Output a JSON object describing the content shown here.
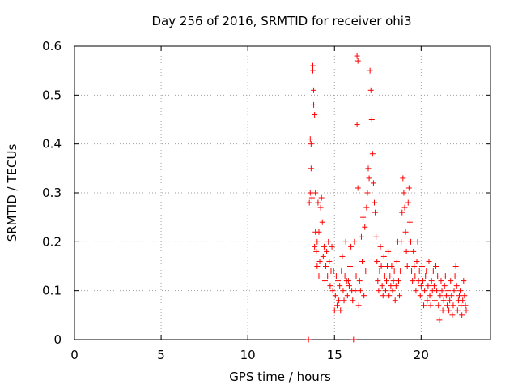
{
  "chart_data": {
    "type": "scatter",
    "title": "Day 256 of 2016, SRMTID for receiver ohi3",
    "xlabel": "GPS time / hours",
    "ylabel": "SRMTID / TECUs",
    "xlim": [
      0,
      24
    ],
    "ylim": [
      0,
      0.6
    ],
    "xticks": [
      0,
      5,
      10,
      15,
      20
    ],
    "yticks": [
      0,
      0.1,
      0.2,
      0.3,
      0.4,
      0.5,
      0.6
    ],
    "xtick_labels": [
      "0",
      "5",
      "10",
      "15",
      "20"
    ],
    "ytick_labels": [
      "0",
      "0.1",
      "0.2",
      "0.3",
      "0.4",
      "0.5",
      "0.6"
    ],
    "grid": true,
    "marker": "plus",
    "color": "#ff0000",
    "series": [
      {
        "name": "SRMTID",
        "x": [
          13.5,
          13.55,
          13.6,
          13.6,
          13.65,
          13.65,
          13.7,
          13.75,
          13.75,
          13.8,
          13.8,
          13.85,
          13.85,
          13.9,
          13.9,
          13.95,
          14.0,
          14.0,
          14.05,
          14.1,
          14.1,
          14.15,
          14.2,
          14.25,
          14.3,
          14.35,
          14.4,
          14.45,
          14.5,
          14.55,
          14.6,
          14.65,
          14.7,
          14.75,
          14.8,
          14.85,
          14.9,
          14.95,
          15.0,
          15.05,
          15.1,
          15.15,
          15.2,
          15.25,
          15.3,
          15.35,
          15.4,
          15.45,
          15.5,
          15.55,
          15.6,
          15.65,
          15.7,
          15.75,
          15.8,
          15.85,
          15.9,
          15.95,
          16.0,
          16.05,
          16.1,
          16.15,
          16.2,
          16.25,
          16.3,
          16.3,
          16.35,
          16.35,
          16.4,
          16.45,
          16.5,
          16.55,
          16.6,
          16.65,
          16.7,
          16.75,
          16.8,
          16.85,
          16.9,
          16.95,
          17.0,
          17.05,
          17.1,
          17.15,
          17.2,
          17.25,
          17.3,
          17.35,
          17.4,
          17.45,
          17.5,
          17.55,
          17.6,
          17.65,
          17.7,
          17.75,
          17.8,
          17.85,
          17.9,
          17.95,
          18.0,
          18.05,
          18.1,
          18.15,
          18.2,
          18.25,
          18.3,
          18.35,
          18.4,
          18.45,
          18.5,
          18.55,
          18.6,
          18.65,
          18.7,
          18.75,
          18.8,
          18.85,
          18.9,
          18.95,
          19.0,
          19.05,
          19.1,
          19.15,
          19.2,
          19.25,
          19.3,
          19.35,
          19.4,
          19.45,
          19.5,
          19.55,
          19.6,
          19.65,
          19.7,
          19.75,
          19.8,
          19.85,
          19.9,
          19.95,
          20.0,
          20.05,
          20.1,
          20.15,
          20.2,
          20.25,
          20.3,
          20.35,
          20.4,
          20.45,
          20.5,
          20.55,
          20.6,
          20.65,
          20.7,
          20.75,
          20.8,
          20.85,
          20.9,
          20.95,
          21.0,
          21.05,
          21.1,
          21.15,
          21.2,
          21.25,
          21.3,
          21.35,
          21.4,
          21.45,
          21.5,
          21.55,
          21.6,
          21.65,
          21.7,
          21.75,
          21.8,
          21.85,
          21.9,
          21.95,
          22.0,
          22.05,
          22.1,
          22.15,
          22.2,
          22.25,
          22.3,
          22.35,
          22.4,
          22.45,
          22.5,
          22.55,
          22.6
        ],
        "y": [
          0.0,
          0.28,
          0.3,
          0.41,
          0.35,
          0.4,
          0.29,
          0.56,
          0.55,
          0.51,
          0.48,
          0.46,
          0.19,
          0.3,
          0.22,
          0.18,
          0.2,
          0.15,
          0.28,
          0.22,
          0.13,
          0.16,
          0.27,
          0.29,
          0.24,
          0.17,
          0.19,
          0.12,
          0.15,
          0.18,
          0.13,
          0.2,
          0.16,
          0.11,
          0.14,
          0.19,
          0.1,
          0.14,
          0.06,
          0.09,
          0.13,
          0.07,
          0.12,
          0.08,
          0.11,
          0.06,
          0.14,
          0.17,
          0.1,
          0.08,
          0.13,
          0.2,
          0.12,
          0.09,
          0.12,
          0.11,
          0.15,
          0.19,
          0.1,
          0.08,
          0.0,
          0.2,
          0.1,
          0.13,
          0.44,
          0.58,
          0.57,
          0.31,
          0.07,
          0.12,
          0.1,
          0.21,
          0.16,
          0.25,
          0.09,
          0.23,
          0.14,
          0.27,
          0.3,
          0.35,
          0.33,
          0.55,
          0.51,
          0.45,
          0.38,
          0.32,
          0.28,
          0.26,
          0.21,
          0.16,
          0.12,
          0.1,
          0.14,
          0.19,
          0.15,
          0.11,
          0.09,
          0.17,
          0.13,
          0.1,
          0.12,
          0.15,
          0.18,
          0.09,
          0.13,
          0.11,
          0.15,
          0.1,
          0.12,
          0.14,
          0.08,
          0.11,
          0.16,
          0.2,
          0.12,
          0.09,
          0.14,
          0.2,
          0.26,
          0.33,
          0.3,
          0.27,
          0.22,
          0.18,
          0.15,
          0.28,
          0.31,
          0.24,
          0.2,
          0.14,
          0.12,
          0.18,
          0.15,
          0.13,
          0.1,
          0.16,
          0.2,
          0.12,
          0.14,
          0.09,
          0.11,
          0.15,
          0.12,
          0.07,
          0.1,
          0.13,
          0.14,
          0.08,
          0.11,
          0.16,
          0.09,
          0.07,
          0.12,
          0.1,
          0.14,
          0.11,
          0.08,
          0.15,
          0.1,
          0.13,
          0.07,
          0.04,
          0.09,
          0.12,
          0.1,
          0.06,
          0.08,
          0.11,
          0.13,
          0.09,
          0.07,
          0.1,
          0.06,
          0.08,
          0.12,
          0.09,
          0.05,
          0.07,
          0.1,
          0.13,
          0.15,
          0.11,
          0.06,
          0.08,
          0.09,
          0.1,
          0.07,
          0.05,
          0.08,
          0.12,
          0.09,
          0.07,
          0.06
        ]
      }
    ]
  }
}
